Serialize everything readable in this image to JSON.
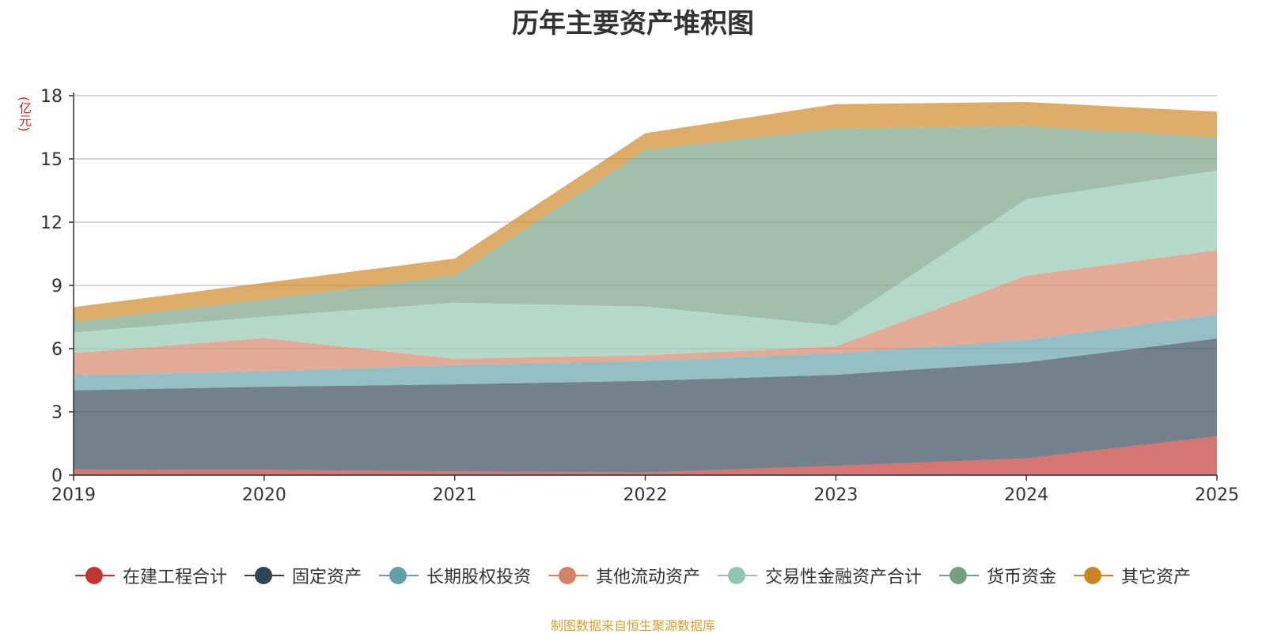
{
  "chart_data": {
    "type": "area",
    "stacked": true,
    "title": "历年主要资产堆积图",
    "unit_label": "(亿元)",
    "x": [
      "2019",
      "2020",
      "2021",
      "2022",
      "2023",
      "2024",
      "2025"
    ],
    "ylim": [
      0,
      18
    ],
    "yticks": [
      "0",
      "3",
      "6",
      "9",
      "12",
      "15",
      "18"
    ],
    "grid": true,
    "legend_position": "bottom",
    "series": [
      {
        "name": "在建工程合计",
        "color": "#c23531",
        "values": [
          0.27,
          0.25,
          0.18,
          0.13,
          0.44,
          0.8,
          1.84
        ]
      },
      {
        "name": "固定资产",
        "color": "#2f4554",
        "values": [
          3.75,
          3.94,
          4.13,
          4.34,
          4.32,
          4.55,
          4.64
        ]
      },
      {
        "name": "长期股权投资",
        "color": "#61a0a8",
        "values": [
          0.72,
          0.73,
          0.91,
          0.95,
          1.02,
          1.06,
          1.14
        ]
      },
      {
        "name": "其他流动资产",
        "color": "#d48265",
        "values": [
          1.05,
          1.58,
          0.3,
          0.27,
          0.32,
          3.05,
          3.05
        ]
      },
      {
        "name": "交易性金融资产合计",
        "color": "#91c7ae",
        "values": [
          0.98,
          1.02,
          2.66,
          2.31,
          1.0,
          3.64,
          3.78
        ]
      },
      {
        "name": "货币资金",
        "color": "#749f83",
        "values": [
          0.5,
          0.8,
          1.29,
          7.42,
          9.34,
          3.45,
          1.57
        ]
      },
      {
        "name": "其它资产",
        "color": "#ca8622",
        "values": [
          0.7,
          0.8,
          0.8,
          0.8,
          1.16,
          1.15,
          1.22
        ]
      }
    ]
  },
  "source_note": "制图数据来自恒生聚源数据库"
}
